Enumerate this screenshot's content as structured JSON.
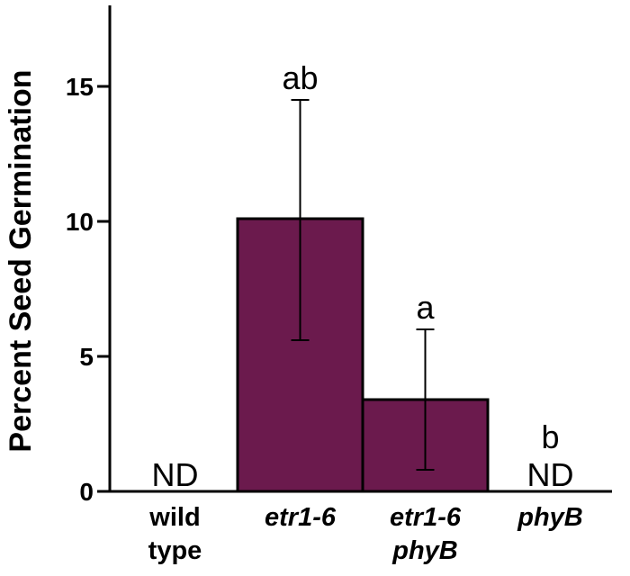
{
  "chart_data": {
    "type": "bar",
    "title": "",
    "ylabel": "Percent Seed Germination",
    "xlabel": "",
    "ylim": [
      0,
      18
    ],
    "yticks": [
      0,
      5,
      10,
      15
    ],
    "grid": false,
    "legend": "none",
    "bar_color": "#6b1a4d",
    "categories": [
      {
        "lines": [
          "wild",
          "type"
        ],
        "italic": false
      },
      {
        "lines": [
          "etr1-6"
        ],
        "italic": true
      },
      {
        "lines": [
          "etr1-6",
          "phyB"
        ],
        "italic": true
      },
      {
        "lines": [
          "phyB"
        ],
        "italic": true
      }
    ],
    "values": [
      null,
      10.1,
      3.4,
      null
    ],
    "error_low": [
      null,
      5.6,
      0.8,
      null
    ],
    "error_high": [
      null,
      14.5,
      6.0,
      null
    ],
    "not_detected_label": "ND",
    "significance_letters": [
      "",
      "ab",
      "a",
      "b"
    ]
  }
}
